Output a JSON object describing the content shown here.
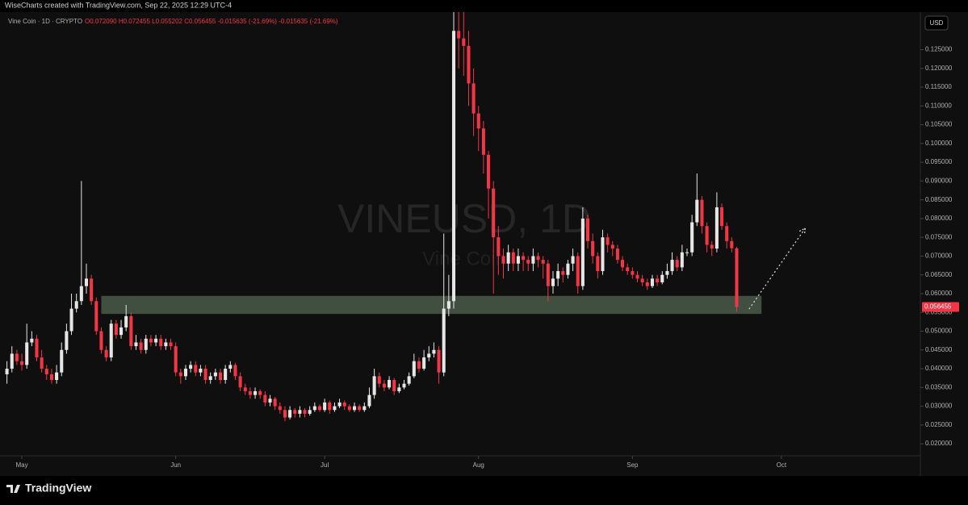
{
  "header": "WiseCharts created with TradingView.com, Sep 22, 2025 12:29 UTC-4",
  "footer": {
    "brand": "TradingView"
  },
  "chart_data": {
    "type": "candlestick",
    "watermark": {
      "symbol": "VINEUSD, 1D",
      "name": "Vine Coin"
    },
    "legend": {
      "symbol": "Vine Coin · 1D · CRYPTO",
      "ohlc": "O0.072090 H0.072455 L0.055202 C0.056455 -0.015635 (-21.69%) -0.015635 (-21.69%)"
    },
    "currency": "USD",
    "up_color": "#e6e6e6",
    "down_color": "#f23645",
    "grid": false,
    "xlim": [
      -1.4,
      184
    ],
    "xticks": [
      {
        "value": 3,
        "label": "May"
      },
      {
        "value": 34,
        "label": "Jun"
      },
      {
        "value": 64,
        "label": "Jul"
      },
      {
        "value": 95,
        "label": "Aug"
      },
      {
        "value": 126,
        "label": "Sep"
      },
      {
        "value": 156,
        "label": "Oct"
      }
    ],
    "ylim": [
      0.0168,
      0.135
    ],
    "yticks": [
      {
        "value": 0.02,
        "label": "0.020000"
      },
      {
        "value": 0.025,
        "label": "0.025000"
      },
      {
        "value": 0.03,
        "label": "0.030000"
      },
      {
        "value": 0.035,
        "label": "0.035000"
      },
      {
        "value": 0.04,
        "label": "0.040000"
      },
      {
        "value": 0.045,
        "label": "0.045000"
      },
      {
        "value": 0.05,
        "label": "0.050000"
      },
      {
        "value": 0.055,
        "label": "0.055000"
      },
      {
        "value": 0.06,
        "label": "0.060000"
      },
      {
        "value": 0.065,
        "label": "0.065000"
      },
      {
        "value": 0.07,
        "label": "0.070000"
      },
      {
        "value": 0.075,
        "label": "0.075000"
      },
      {
        "value": 0.08,
        "label": "0.080000"
      },
      {
        "value": 0.085,
        "label": "0.085000"
      },
      {
        "value": 0.09,
        "label": "0.090000"
      },
      {
        "value": 0.095,
        "label": "0.095000"
      },
      {
        "value": 0.1,
        "label": "0.100000"
      },
      {
        "value": 0.105,
        "label": "0.105000"
      },
      {
        "value": 0.11,
        "label": "0.110000"
      },
      {
        "value": 0.115,
        "label": "0.115000"
      },
      {
        "value": 0.12,
        "label": "0.120000"
      },
      {
        "value": 0.125,
        "label": "0.125000"
      }
    ],
    "last_price": {
      "value": 0.056455,
      "label": "0.056455"
    },
    "zone": {
      "start": 19,
      "end": 152,
      "from": 0.0546,
      "to": 0.0594,
      "color": "#9fc99a"
    },
    "arrow": {
      "x": [
        149.5,
        160.8
      ],
      "y": [
        0.0559,
        0.0774
      ]
    },
    "open": [
      0.0385,
      0.04,
      0.044,
      0.042,
      0.041,
      0.047,
      0.048,
      0.043,
      0.04,
      0.0385,
      0.037,
      0.039,
      0.045,
      0.05,
      0.056,
      0.058,
      0.062,
      0.064,
      0.058,
      0.05,
      0.045,
      0.043,
      0.052,
      0.049,
      0.051,
      0.054,
      0.046,
      0.047,
      0.045,
      0.048,
      0.047,
      0.048,
      0.046,
      0.047,
      0.046,
      0.039,
      0.038,
      0.04,
      0.041,
      0.039,
      0.04,
      0.037,
      0.038,
      0.039,
      0.037,
      0.04,
      0.041,
      0.038,
      0.035,
      0.034,
      0.033,
      0.034,
      0.033,
      0.031,
      0.032,
      0.03,
      0.029,
      0.027,
      0.029,
      0.028,
      0.029,
      0.028,
      0.029,
      0.03,
      0.029,
      0.031,
      0.029,
      0.03,
      0.031,
      0.03,
      0.029,
      0.03,
      0.029,
      0.03,
      0.033,
      0.038,
      0.036,
      0.035,
      0.037,
      0.034,
      0.035,
      0.036,
      0.038,
      0.042,
      0.04,
      0.043,
      0.044,
      0.045,
      0.039,
      0.056,
      0.058,
      0.13,
      0.128,
      0.126,
      0.116,
      0.108,
      0.104,
      0.097,
      0.088,
      0.075,
      0.07,
      0.068,
      0.071,
      0.068,
      0.07,
      0.069,
      0.068,
      0.07,
      0.069,
      0.068,
      0.062,
      0.064,
      0.066,
      0.065,
      0.068,
      0.07,
      0.062,
      0.08,
      0.074,
      0.07,
      0.066,
      0.075,
      0.073,
      0.072,
      0.069,
      0.067,
      0.066,
      0.065,
      0.064,
      0.063,
      0.062,
      0.064,
      0.063,
      0.065,
      0.066,
      0.069,
      0.067,
      0.071,
      0.071,
      0.079,
      0.085,
      0.078,
      0.073,
      0.072,
      0.083,
      0.078,
      0.074,
      0.07209
    ],
    "high": [
      0.042,
      0.046,
      0.045,
      0.044,
      0.052,
      0.05,
      0.049,
      0.045,
      0.041,
      0.04,
      0.041,
      0.047,
      0.052,
      0.06,
      0.06,
      0.09,
      0.068,
      0.065,
      0.059,
      0.051,
      0.046,
      0.053,
      0.053,
      0.053,
      0.057,
      0.055,
      0.049,
      0.048,
      0.049,
      0.049,
      0.049,
      0.049,
      0.048,
      0.048,
      0.047,
      0.04,
      0.041,
      0.042,
      0.042,
      0.041,
      0.041,
      0.039,
      0.04,
      0.04,
      0.041,
      0.042,
      0.0415,
      0.039,
      0.036,
      0.035,
      0.035,
      0.0345,
      0.034,
      0.033,
      0.0325,
      0.031,
      0.03,
      0.03,
      0.0295,
      0.03,
      0.0295,
      0.03,
      0.031,
      0.0305,
      0.032,
      0.0315,
      0.031,
      0.032,
      0.0315,
      0.0305,
      0.031,
      0.0305,
      0.031,
      0.035,
      0.04,
      0.039,
      0.037,
      0.038,
      0.0375,
      0.036,
      0.037,
      0.039,
      0.044,
      0.043,
      0.045,
      0.046,
      0.047,
      0.046,
      0.076,
      0.065,
      0.15,
      0.15,
      0.146,
      0.13,
      0.12,
      0.11,
      0.106,
      0.098,
      0.09,
      0.078,
      0.072,
      0.073,
      0.072,
      0.072,
      0.071,
      0.07,
      0.072,
      0.071,
      0.07,
      0.069,
      0.066,
      0.068,
      0.067,
      0.069,
      0.072,
      0.071,
      0.083,
      0.081,
      0.076,
      0.071,
      0.077,
      0.076,
      0.074,
      0.073,
      0.07,
      0.068,
      0.067,
      0.066,
      0.065,
      0.064,
      0.065,
      0.065,
      0.066,
      0.068,
      0.071,
      0.07,
      0.073,
      0.072,
      0.081,
      0.092,
      0.086,
      0.079,
      0.074,
      0.087,
      0.084,
      0.079,
      0.075,
      0.072455
    ],
    "low": [
      0.036,
      0.039,
      0.041,
      0.0395,
      0.04,
      0.046,
      0.042,
      0.039,
      0.037,
      0.036,
      0.036,
      0.038,
      0.044,
      0.049,
      0.055,
      0.057,
      0.06,
      0.057,
      0.049,
      0.044,
      0.042,
      0.042,
      0.048,
      0.048,
      0.05,
      0.045,
      0.045,
      0.044,
      0.044,
      0.046,
      0.046,
      0.045,
      0.045,
      0.045,
      0.038,
      0.036,
      0.037,
      0.039,
      0.038,
      0.038,
      0.036,
      0.036,
      0.037,
      0.036,
      0.036,
      0.039,
      0.037,
      0.034,
      0.033,
      0.032,
      0.032,
      0.032,
      0.03,
      0.03,
      0.029,
      0.028,
      0.026,
      0.0265,
      0.027,
      0.027,
      0.027,
      0.0275,
      0.0285,
      0.0285,
      0.0285,
      0.028,
      0.0285,
      0.0295,
      0.029,
      0.0285,
      0.0285,
      0.0285,
      0.0285,
      0.0295,
      0.032,
      0.035,
      0.034,
      0.0345,
      0.033,
      0.0335,
      0.0345,
      0.0355,
      0.0375,
      0.039,
      0.0395,
      0.042,
      0.043,
      0.036,
      0.038,
      0.054,
      0.056,
      0.12,
      0.118,
      0.11,
      0.102,
      0.098,
      0.092,
      0.08,
      0.06,
      0.065,
      0.064,
      0.066,
      0.066,
      0.066,
      0.066,
      0.066,
      0.066,
      0.067,
      0.064,
      0.058,
      0.06,
      0.062,
      0.063,
      0.064,
      0.066,
      0.06,
      0.061,
      0.072,
      0.068,
      0.064,
      0.065,
      0.071,
      0.07,
      0.068,
      0.066,
      0.065,
      0.064,
      0.063,
      0.062,
      0.061,
      0.0615,
      0.062,
      0.0625,
      0.064,
      0.065,
      0.066,
      0.066,
      0.07,
      0.07,
      0.078,
      0.076,
      0.071,
      0.07,
      0.071,
      0.077,
      0.072,
      0.071,
      0.055202
    ],
    "close": [
      0.04,
      0.044,
      0.042,
      0.041,
      0.047,
      0.048,
      0.043,
      0.04,
      0.0385,
      0.037,
      0.039,
      0.045,
      0.05,
      0.056,
      0.058,
      0.062,
      0.064,
      0.058,
      0.05,
      0.045,
      0.043,
      0.052,
      0.049,
      0.051,
      0.054,
      0.046,
      0.047,
      0.045,
      0.048,
      0.047,
      0.048,
      0.046,
      0.047,
      0.046,
      0.039,
      0.038,
      0.04,
      0.041,
      0.039,
      0.04,
      0.037,
      0.038,
      0.039,
      0.037,
      0.04,
      0.041,
      0.038,
      0.035,
      0.034,
      0.033,
      0.034,
      0.033,
      0.031,
      0.032,
      0.03,
      0.029,
      0.027,
      0.029,
      0.028,
      0.029,
      0.028,
      0.029,
      0.03,
      0.029,
      0.031,
      0.029,
      0.03,
      0.031,
      0.03,
      0.029,
      0.03,
      0.029,
      0.03,
      0.033,
      0.038,
      0.036,
      0.035,
      0.037,
      0.034,
      0.035,
      0.036,
      0.038,
      0.042,
      0.04,
      0.043,
      0.044,
      0.045,
      0.039,
      0.056,
      0.058,
      0.13,
      0.128,
      0.126,
      0.116,
      0.108,
      0.104,
      0.097,
      0.088,
      0.075,
      0.07,
      0.068,
      0.071,
      0.068,
      0.07,
      0.069,
      0.068,
      0.07,
      0.069,
      0.068,
      0.062,
      0.064,
      0.066,
      0.065,
      0.068,
      0.07,
      0.062,
      0.08,
      0.074,
      0.07,
      0.066,
      0.075,
      0.073,
      0.072,
      0.069,
      0.067,
      0.066,
      0.065,
      0.064,
      0.063,
      0.062,
      0.064,
      0.063,
      0.065,
      0.066,
      0.069,
      0.067,
      0.071,
      0.071,
      0.079,
      0.085,
      0.078,
      0.073,
      0.072,
      0.083,
      0.078,
      0.074,
      0.07209,
      0.056455
    ]
  }
}
